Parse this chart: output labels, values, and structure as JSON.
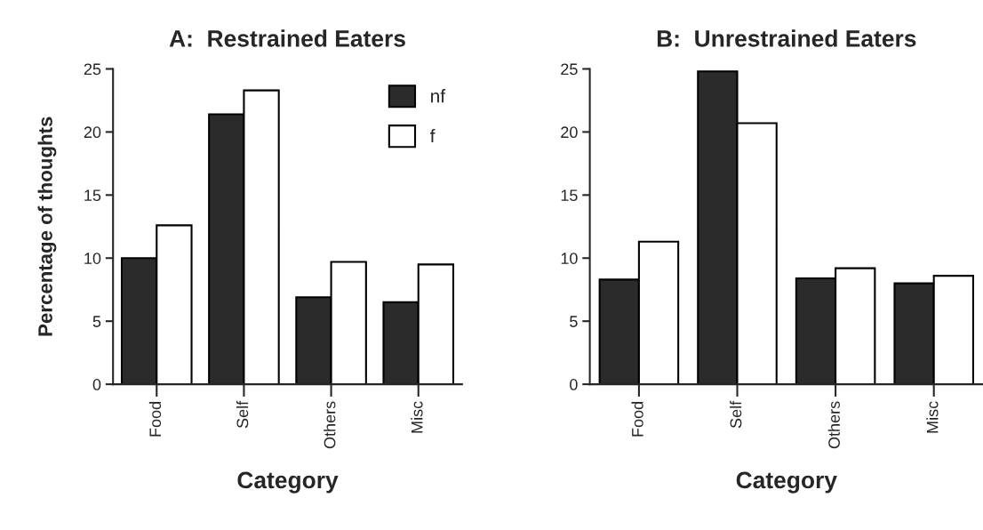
{
  "chart_data": [
    {
      "type": "bar",
      "title": "A:  Restrained Eaters",
      "xlabel": "Category",
      "ylabel": "Percentage of thoughts",
      "categories": [
        "Food",
        "Self",
        "Others",
        "Misc"
      ],
      "ylim": [
        0,
        25
      ],
      "yticks": [
        0,
        5,
        10,
        15,
        20,
        25
      ],
      "grid": false,
      "legend": "top right",
      "series": [
        {
          "name": "nf",
          "color": "#2b2b2b",
          "values": [
            10.0,
            21.4,
            6.9,
            6.5
          ]
        },
        {
          "name": "f",
          "color": "#ffffff",
          "values": [
            12.6,
            23.3,
            9.7,
            9.5
          ]
        }
      ]
    },
    {
      "type": "bar",
      "title": "B:  Unrestrained Eaters",
      "xlabel": "Category",
      "categories": [
        "Food",
        "Self",
        "Others",
        "Misc"
      ],
      "ylim": [
        0,
        25
      ],
      "yticks": [
        0,
        5,
        10,
        15,
        20,
        25
      ],
      "grid": false,
      "legend": false,
      "series": [
        {
          "color": "#2b2b2b",
          "values": [
            8.3,
            24.8,
            8.4,
            8.0
          ]
        },
        {
          "color": "#ffffff",
          "values": [
            11.3,
            20.7,
            9.2,
            8.6
          ]
        }
      ]
    }
  ]
}
